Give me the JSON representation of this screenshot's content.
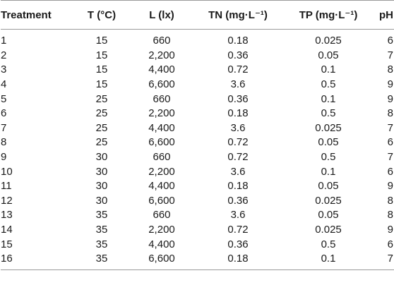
{
  "table": {
    "headers": [
      "Treatment",
      "T (°C)",
      "L (lx)",
      "TN (mg·L⁻¹)",
      "TP (mg·L⁻¹)",
      "pH"
    ],
    "rows": [
      [
        "1",
        "15",
        "660",
        "0.18",
        "0.025",
        "6"
      ],
      [
        "2",
        "15",
        "2,200",
        "0.36",
        "0.05",
        "7"
      ],
      [
        "3",
        "15",
        "4,400",
        "0.72",
        "0.1",
        "8"
      ],
      [
        "4",
        "15",
        "6,600",
        "3.6",
        "0.5",
        "9"
      ],
      [
        "5",
        "25",
        "660",
        "0.36",
        "0.1",
        "9"
      ],
      [
        "6",
        "25",
        "2,200",
        "0.18",
        "0.5",
        "8"
      ],
      [
        "7",
        "25",
        "4,400",
        "3.6",
        "0.025",
        "7"
      ],
      [
        "8",
        "25",
        "6,600",
        "0.72",
        "0.05",
        "6"
      ],
      [
        "9",
        "30",
        "660",
        "0.72",
        "0.5",
        "7"
      ],
      [
        "10",
        "30",
        "2,200",
        "3.6",
        "0.1",
        "6"
      ],
      [
        "11",
        "30",
        "4,400",
        "0.18",
        "0.05",
        "9"
      ],
      [
        "12",
        "30",
        "6,600",
        "0.36",
        "0.025",
        "8"
      ],
      [
        "13",
        "35",
        "660",
        "3.6",
        "0.05",
        "8"
      ],
      [
        "14",
        "35",
        "2,200",
        "0.72",
        "0.025",
        "9"
      ],
      [
        "15",
        "35",
        "4,400",
        "0.36",
        "0.5",
        "6"
      ],
      [
        "16",
        "35",
        "6,600",
        "0.18",
        "0.1",
        "7"
      ]
    ]
  }
}
